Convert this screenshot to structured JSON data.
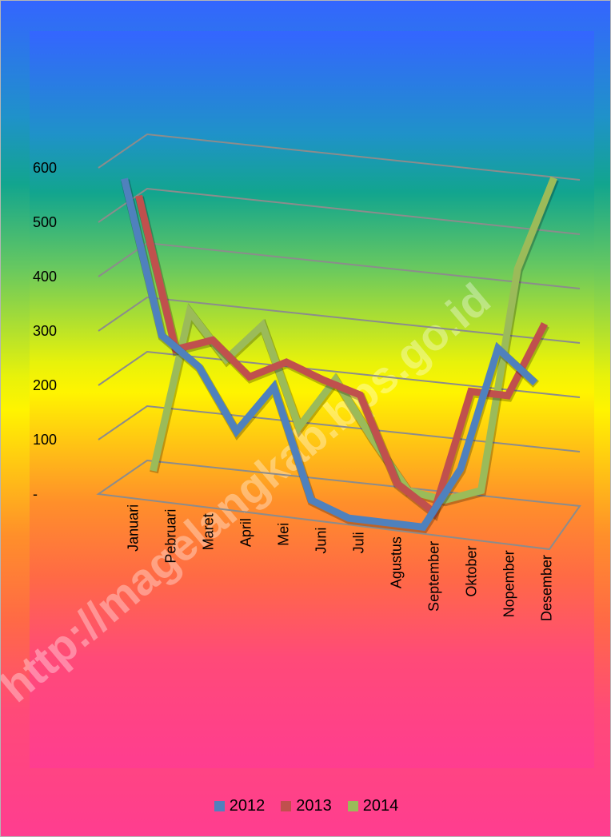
{
  "watermark": "http://magelangkab.bps.go.id",
  "chart_data": {
    "type": "line",
    "style": "3d-line",
    "categories": [
      "Januari",
      "Pebruari",
      "Maret",
      "April",
      "Mei",
      "Juni",
      "Juli",
      "Agustus",
      "September",
      "Oktober",
      "Nopember",
      "Desember"
    ],
    "y_tick_labels": [
      "-",
      "100",
      "200",
      "300",
      "400",
      "500",
      "600"
    ],
    "ylim": [
      0,
      600
    ],
    "grid": true,
    "legend_position": "bottom",
    "series": [
      {
        "name": "2012",
        "color": "#4f81bd",
        "values": [
          575,
          295,
          245,
          135,
          225,
          25,
          0,
          0,
          0,
          115,
          345,
          290
        ]
      },
      {
        "name": "2013",
        "color": "#c0504d",
        "values": [
          525,
          250,
          275,
          215,
          250,
          225,
          205,
          50,
          5,
          235,
          235,
          375
        ]
      },
      {
        "name": "2014",
        "color": "#9bbb59",
        "values": [
          0,
          300,
          220,
          290,
          110,
          205,
          105,
          15,
          5,
          30,
          445,
          620
        ]
      }
    ]
  },
  "legend": {
    "items": [
      {
        "label": "2012",
        "color": "#4f81bd"
      },
      {
        "label": "2013",
        "color": "#c0504d"
      },
      {
        "label": "2014",
        "color": "#9bbb59"
      }
    ]
  }
}
